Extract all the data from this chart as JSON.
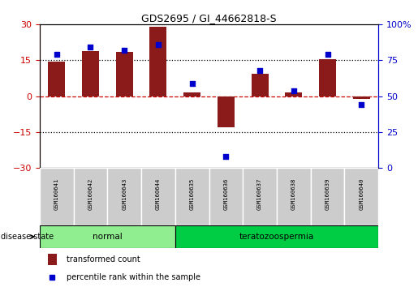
{
  "title": "GDS2695 / GI_44662818-S",
  "samples": [
    "GSM160641",
    "GSM160642",
    "GSM160643",
    "GSM160644",
    "GSM160635",
    "GSM160636",
    "GSM160637",
    "GSM160638",
    "GSM160639",
    "GSM160640"
  ],
  "transformed_count": [
    14.5,
    19.0,
    18.5,
    29.0,
    1.5,
    -13.0,
    9.5,
    1.5,
    15.5,
    -1.0
  ],
  "percentile_rank": [
    79,
    84,
    82,
    86,
    59,
    8,
    68,
    54,
    79,
    44
  ],
  "disease_groups": [
    {
      "label": "normal",
      "indices": [
        0,
        1,
        2,
        3
      ],
      "color": "#90EE90"
    },
    {
      "label": "teratozoospermia",
      "indices": [
        4,
        5,
        6,
        7,
        8,
        9
      ],
      "color": "#00CC44"
    }
  ],
  "bar_color": "#8B1A1A",
  "point_color": "#0000CC",
  "ylim_left": [
    -30,
    30
  ],
  "ylim_right": [
    0,
    100
  ],
  "yticks_left": [
    -30,
    -15,
    0,
    15,
    30
  ],
  "yticks_right": [
    0,
    25,
    50,
    75,
    100
  ],
  "hlines_dotted": [
    15,
    -15
  ],
  "hline_red_dashed": 0,
  "legend_bar_label": "transformed count",
  "legend_point_label": "percentile rank within the sample",
  "disease_state_label": "disease state",
  "background_color": "#FFFFFF",
  "plot_bg_color": "#FFFFFF",
  "axis_color_left": "#CC0000",
  "axis_color_right": "#0000CC",
  "sample_box_color": "#CCCCCC",
  "bar_width": 0.5
}
